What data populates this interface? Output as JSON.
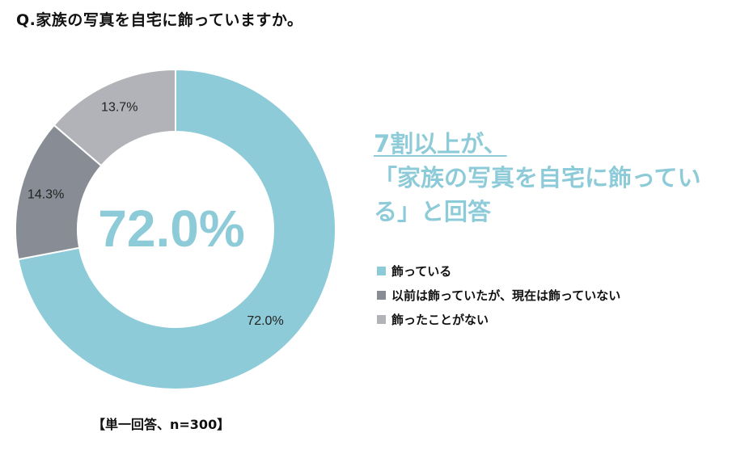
{
  "question": "Q.家族の写真を自宅に飾っていますか。",
  "headline": {
    "line1": "7割以上が、",
    "line2": "「家族の写真を自宅に飾ってい",
    "line3": "る」と回答"
  },
  "footnote": "【単一回答、n=300】",
  "colors": {
    "accent": "#8ecbd8",
    "series": [
      "#8ecbd8",
      "#888c94",
      "#b1b3b8"
    ]
  },
  "chart_data": {
    "type": "pie",
    "donut": true,
    "center_label": "72.0%",
    "start": "top, clockwise",
    "slices": [
      {
        "label": "飾っている",
        "value": 72.0,
        "value_label": "72.0%"
      },
      {
        "label": "以前は飾っていたが、現在は飾っていない",
        "value": 14.3,
        "value_label": "14.3%"
      },
      {
        "label": "飾ったことがない",
        "value": 13.7,
        "value_label": "13.7%"
      }
    ],
    "legend": "right"
  }
}
